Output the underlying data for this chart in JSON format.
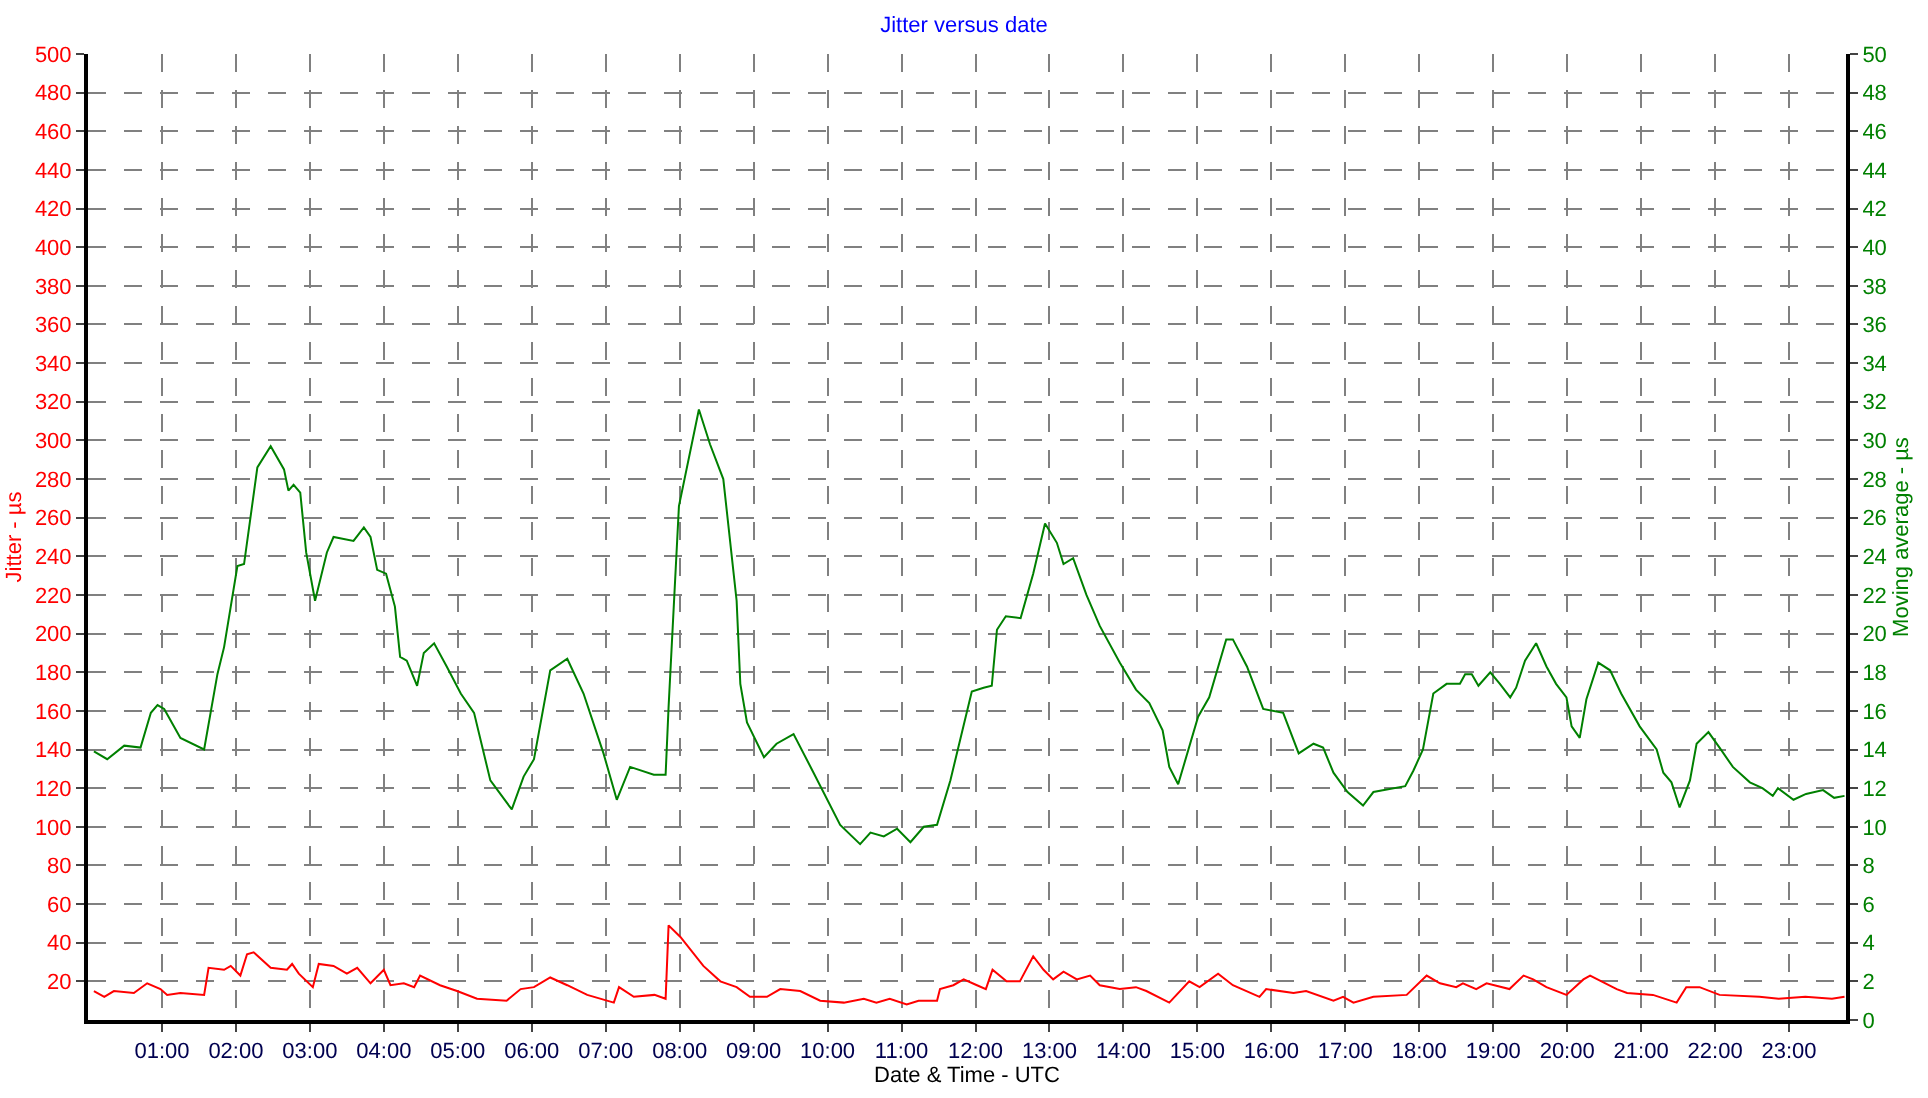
{
  "chart_data": {
    "type": "line",
    "title": "Jitter versus date",
    "xlabel": "Date & Time - UTC",
    "ylabel": "Jitter - µs",
    "y2label": "Moving average - µs",
    "xlim": [
      0,
      23.77
    ],
    "xticks": [
      {
        "value": 1,
        "label": "01:00"
      },
      {
        "value": 2,
        "label": "02:00"
      },
      {
        "value": 3,
        "label": "03:00"
      },
      {
        "value": 4,
        "label": "04:00"
      },
      {
        "value": 5,
        "label": "05:00"
      },
      {
        "value": 6,
        "label": "06:00"
      },
      {
        "value": 7,
        "label": "07:00"
      },
      {
        "value": 8,
        "label": "08:00"
      },
      {
        "value": 9,
        "label": "09:00"
      },
      {
        "value": 10,
        "label": "10:00"
      },
      {
        "value": 11,
        "label": "11:00"
      },
      {
        "value": 12,
        "label": "12:00"
      },
      {
        "value": 13,
        "label": "13:00"
      },
      {
        "value": 14,
        "label": "14:00"
      },
      {
        "value": 15,
        "label": "15:00"
      },
      {
        "value": 16,
        "label": "16:00"
      },
      {
        "value": 17,
        "label": "17:00"
      },
      {
        "value": 18,
        "label": "18:00"
      },
      {
        "value": 19,
        "label": "19:00"
      },
      {
        "value": 20,
        "label": "20:00"
      },
      {
        "value": 21,
        "label": "21:00"
      },
      {
        "value": 22,
        "label": "22:00"
      },
      {
        "value": 23,
        "label": "23:00"
      }
    ],
    "ylim": [
      0,
      500
    ],
    "yticks": [
      20,
      40,
      60,
      80,
      100,
      120,
      140,
      160,
      180,
      200,
      220,
      240,
      260,
      280,
      300,
      320,
      340,
      360,
      380,
      400,
      420,
      440,
      460,
      480,
      500
    ],
    "y2lim": [
      0,
      50
    ],
    "y2ticks": [
      0,
      2,
      4,
      6,
      8,
      10,
      12,
      14,
      16,
      18,
      20,
      22,
      24,
      26,
      28,
      30,
      32,
      34,
      36,
      38,
      40,
      42,
      44,
      46,
      48,
      50
    ],
    "grid": true,
    "marker": "none",
    "line_style": "solid",
    "series": [
      {
        "color": "#ff0000",
        "x": [
          0.08,
          0.22,
          0.35,
          0.62,
          0.8,
          0.98,
          1.07,
          1.25,
          1.57,
          1.63,
          1.84,
          1.93,
          2.06,
          2.15,
          2.24,
          2.47,
          2.69,
          2.76,
          2.85,
          3.04,
          3.12,
          3.32,
          3.5,
          3.64,
          3.82,
          4.0,
          4.09,
          4.27,
          4.41,
          4.49,
          4.76,
          4.99,
          5.26,
          5.66,
          5.85,
          6.03,
          6.25,
          6.48,
          6.75,
          7.11,
          7.18,
          7.38,
          7.66,
          7.81,
          7.85,
          8.01,
          8.32,
          8.55,
          8.77,
          8.95,
          9.18,
          9.36,
          9.63,
          9.9,
          10.22,
          10.49,
          10.66,
          10.84,
          11.07,
          11.23,
          11.48,
          11.52,
          11.7,
          11.84,
          12.02,
          12.14,
          12.23,
          12.42,
          12.6,
          12.78,
          12.92,
          13.05,
          13.19,
          13.37,
          13.55,
          13.68,
          13.95,
          14.17,
          14.31,
          14.62,
          14.89,
          15.03,
          15.28,
          15.48,
          15.84,
          15.93,
          16.3,
          16.47,
          16.84,
          16.97,
          17.11,
          17.38,
          17.83,
          18.1,
          18.28,
          18.5,
          18.59,
          18.77,
          18.91,
          19.22,
          19.41,
          19.54,
          19.72,
          19.99,
          20.22,
          20.31,
          20.67,
          20.81,
          21.16,
          21.48,
          21.61,
          21.79,
          22.06,
          22.6,
          22.86,
          23.22,
          23.58,
          23.75
        ],
        "values": [
          15,
          12,
          15,
          14,
          19,
          16,
          13,
          14,
          13,
          27,
          26,
          28,
          23,
          34,
          35,
          27,
          26,
          29,
          24,
          17,
          29,
          28,
          24,
          27,
          19,
          26,
          18,
          19,
          17,
          23,
          18,
          15,
          11,
          10,
          16,
          17,
          22,
          18,
          13,
          9,
          17,
          12,
          13,
          11,
          49,
          43,
          28,
          20,
          17,
          12,
          12,
          16,
          15,
          10,
          9,
          11,
          9,
          11,
          8,
          10,
          10,
          16,
          18,
          21,
          18,
          16,
          26,
          20,
          20,
          33,
          26,
          21,
          25,
          21,
          23,
          18,
          16,
          17,
          15,
          9,
          20,
          17,
          24,
          18,
          12,
          16,
          14,
          15,
          10,
          12,
          9,
          12,
          13,
          23,
          19,
          17,
          19,
          16,
          19,
          16,
          23,
          21,
          17,
          13,
          21,
          23,
          16,
          14,
          13,
          9,
          17,
          17,
          13,
          12,
          11,
          12,
          11,
          12
        ]
      },
      {
        "color": "#008000",
        "axis": "y2",
        "x": [
          0.08,
          0.26,
          0.49,
          0.71,
          0.85,
          0.94,
          1.03,
          1.25,
          1.57,
          1.75,
          1.84,
          2.02,
          2.11,
          2.29,
          2.47,
          2.65,
          2.71,
          2.78,
          2.87,
          2.95,
          3.07,
          3.23,
          3.32,
          3.59,
          3.73,
          3.82,
          3.91,
          4.03,
          4.15,
          4.22,
          4.31,
          4.45,
          4.54,
          4.68,
          4.85,
          5.04,
          5.22,
          5.44,
          5.73,
          5.89,
          6.03,
          6.25,
          6.48,
          6.7,
          6.97,
          7.15,
          7.33,
          7.65,
          7.81,
          7.85,
          7.99,
          8.26,
          8.41,
          8.59,
          8.77,
          8.82,
          8.91,
          9.14,
          9.31,
          9.54,
          9.81,
          10.17,
          10.44,
          10.58,
          10.76,
          10.94,
          11.12,
          11.3,
          11.48,
          11.66,
          11.95,
          12.11,
          12.22,
          12.29,
          12.41,
          12.61,
          12.78,
          12.94,
          13.1,
          13.19,
          13.32,
          13.5,
          13.68,
          13.95,
          14.17,
          14.35,
          14.53,
          14.62,
          14.74,
          15.01,
          15.16,
          15.39,
          15.48,
          15.67,
          15.89,
          16.16,
          16.37,
          16.57,
          16.7,
          16.84,
          17.03,
          17.24,
          17.38,
          17.81,
          17.92,
          18.05,
          18.19,
          18.37,
          18.55,
          18.62,
          18.71,
          18.8,
          18.96,
          19.09,
          19.23,
          19.31,
          19.43,
          19.58,
          19.72,
          19.85,
          19.99,
          20.06,
          20.17,
          20.26,
          20.42,
          20.58,
          20.73,
          20.98,
          21.21,
          21.3,
          21.41,
          21.52,
          21.66,
          21.75,
          21.91,
          22.06,
          22.24,
          22.47,
          22.64,
          22.78,
          22.85,
          23.06,
          23.23,
          23.46,
          23.61,
          23.75
        ],
        "values": [
          13.9,
          13.5,
          14.2,
          14.1,
          15.9,
          16.3,
          16.1,
          14.6,
          14.0,
          17.9,
          19.3,
          23.5,
          23.6,
          28.6,
          29.7,
          28.5,
          27.4,
          27.7,
          27.3,
          24.2,
          21.7,
          24.2,
          25.0,
          24.8,
          25.5,
          25.0,
          23.3,
          23.1,
          21.4,
          18.8,
          18.6,
          17.3,
          19.0,
          19.5,
          18.3,
          16.9,
          15.9,
          12.4,
          10.9,
          12.6,
          13.5,
          18.1,
          18.7,
          16.9,
          13.8,
          11.4,
          13.1,
          12.7,
          12.7,
          16.2,
          26.6,
          31.6,
          29.8,
          28.0,
          21.7,
          17.4,
          15.4,
          13.6,
          14.3,
          14.8,
          12.8,
          10.1,
          9.1,
          9.7,
          9.5,
          9.9,
          9.2,
          10.0,
          10.1,
          12.4,
          17.0,
          17.2,
          17.3,
          20.2,
          20.9,
          20.8,
          23.1,
          25.7,
          24.7,
          23.6,
          23.9,
          22.0,
          20.4,
          18.5,
          17.1,
          16.4,
          15.0,
          13.1,
          12.2,
          15.7,
          16.7,
          19.7,
          19.7,
          18.3,
          16.1,
          15.9,
          13.8,
          14.3,
          14.1,
          12.8,
          11.8,
          11.1,
          11.8,
          12.1,
          12.9,
          14.0,
          16.9,
          17.4,
          17.4,
          17.9,
          17.9,
          17.3,
          18.0,
          17.4,
          16.7,
          17.2,
          18.6,
          19.5,
          18.3,
          17.4,
          16.7,
          15.2,
          14.6,
          16.6,
          18.5,
          18.1,
          16.9,
          15.2,
          14.0,
          12.8,
          12.3,
          11.0,
          12.4,
          14.3,
          14.9,
          14.1,
          13.1,
          12.3,
          12.0,
          11.6,
          12.0,
          11.4,
          11.7,
          11.9,
          11.5,
          11.6
        ]
      }
    ]
  }
}
